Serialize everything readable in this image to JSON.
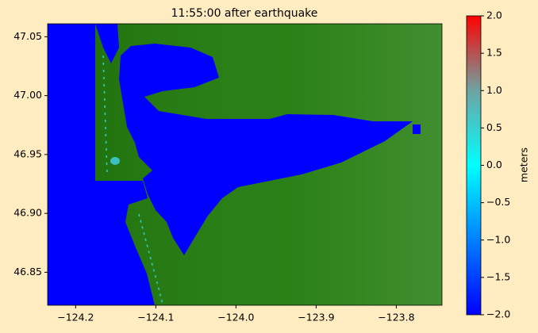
{
  "chart_data": {
    "type": "map",
    "title": "11:55:00 after earthquake",
    "xlim": [
      -124.235,
      -123.743
    ],
    "xticks": [
      {
        "value": -124.2,
        "label": "−124.2"
      },
      {
        "value": -124.1,
        "label": "−124.1"
      },
      {
        "value": -124.0,
        "label": "−124.0"
      },
      {
        "value": -123.9,
        "label": "−123.9"
      },
      {
        "value": -123.8,
        "label": "−123.8"
      }
    ],
    "ylim": [
      46.822,
      47.061
    ],
    "yticks": [
      {
        "value": 46.85,
        "label": "46.85"
      },
      {
        "value": 46.9,
        "label": "46.90"
      },
      {
        "value": 46.95,
        "label": "46.95"
      },
      {
        "value": 47.0,
        "label": "47.00"
      },
      47.05
    ],
    "colorbar": {
      "label": "meters",
      "clim": [
        -2.0,
        2.0
      ],
      "ticks": [
        {
          "value": -2.0,
          "label": "−2.0"
        },
        {
          "value": -1.5,
          "label": "−1.5"
        },
        {
          "value": -1.0,
          "label": "−1.0"
        },
        {
          "value": -0.5,
          "label": "−0.5"
        },
        {
          "value": 0.0,
          "label": "0.0"
        },
        {
          "value": 0.5,
          "label": "0.5"
        },
        {
          "value": 1.0,
          "label": "1.0"
        },
        {
          "value": 1.5,
          "label": "1.5"
        },
        {
          "value": 2.0,
          "label": "2.0"
        }
      ],
      "colormap": [
        "#0000ff",
        "#0080ff",
        "#00ffff",
        "#6fa3a3",
        "#ff0000"
      ]
    },
    "land_color": "#1f7a0a"
  }
}
